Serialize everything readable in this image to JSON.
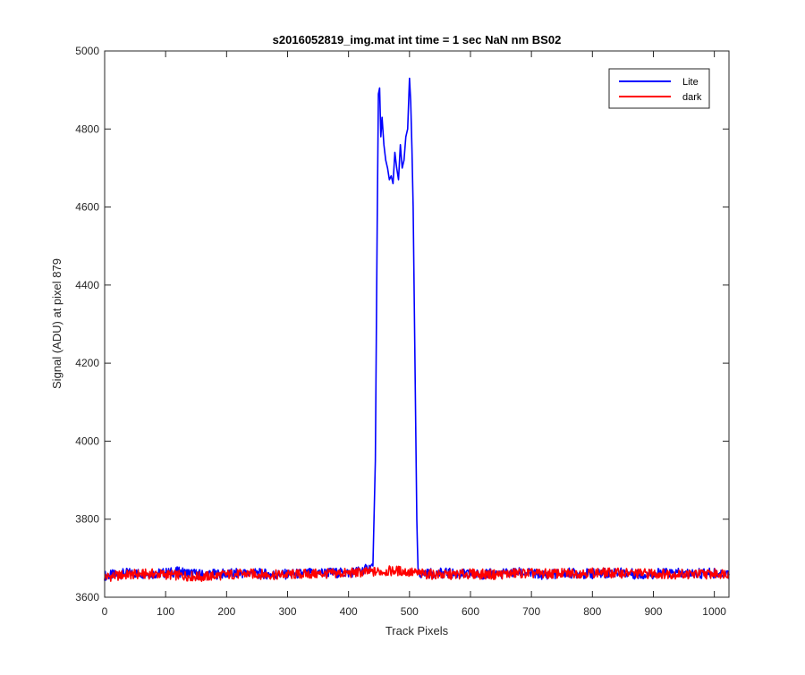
{
  "chart_data": {
    "type": "line",
    "title": "s2016052819_img.mat int time = 1 sec  NaN nm BS02",
    "xlabel": "Track Pixels",
    "ylabel": "Signal (ADU) at pixel 879",
    "xlim": [
      0,
      1024
    ],
    "ylim": [
      3600,
      5000
    ],
    "xticks": [
      0,
      100,
      200,
      300,
      400,
      500,
      600,
      700,
      800,
      900,
      1000
    ],
    "yticks": [
      3600,
      3800,
      4000,
      4200,
      4400,
      4600,
      4800,
      5000
    ],
    "grid": false,
    "legend_position": "top-right",
    "series": [
      {
        "name": "Lite",
        "color": "#0000ff",
        "x": [
          0,
          40,
          80,
          120,
          160,
          200,
          240,
          280,
          320,
          360,
          400,
          430,
          440,
          444,
          447,
          449,
          451,
          453,
          455,
          458,
          461,
          464,
          467,
          470,
          473,
          476,
          479,
          482,
          485,
          488,
          491,
          494,
          497,
          500,
          502,
          504,
          506,
          509,
          512,
          514,
          520,
          560,
          600,
          640,
          680,
          720,
          760,
          800,
          840,
          880,
          920,
          960,
          1000,
          1024
        ],
        "y": [
          3655,
          3662,
          3660,
          3665,
          3658,
          3660,
          3662,
          3658,
          3660,
          3663,
          3662,
          3672,
          3680,
          3950,
          4550,
          4890,
          4905,
          4780,
          4830,
          4760,
          4720,
          4700,
          4670,
          4680,
          4660,
          4740,
          4700,
          4670,
          4760,
          4700,
          4720,
          4780,
          4800,
          4930,
          4870,
          4750,
          4600,
          4200,
          3800,
          3665,
          3660,
          3662,
          3658,
          3660,
          3663,
          3658,
          3662,
          3660,
          3664,
          3658,
          3662,
          3660,
          3662,
          3660
        ]
      },
      {
        "name": "dark",
        "color": "#ff0000",
        "x": [
          0,
          40,
          80,
          120,
          160,
          200,
          240,
          280,
          320,
          360,
          400,
          440,
          480,
          520,
          560,
          600,
          640,
          680,
          720,
          760,
          800,
          840,
          880,
          920,
          960,
          1000,
          1024
        ],
        "y": [
          3652,
          3658,
          3660,
          3656,
          3652,
          3658,
          3660,
          3657,
          3659,
          3660,
          3662,
          3665,
          3668,
          3660,
          3657,
          3660,
          3658,
          3662,
          3660,
          3661,
          3663,
          3662,
          3661,
          3660,
          3659,
          3660,
          3662
        ]
      }
    ]
  }
}
